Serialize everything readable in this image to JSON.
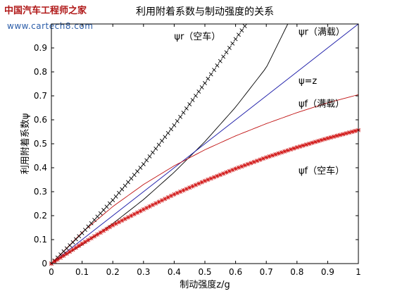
{
  "watermark": {
    "brand": "中国汽车工程师之家",
    "url": "www.cartech8.com"
  },
  "colors": {
    "psi_r_loaded": "#000000",
    "psi_equals_z": "#1a1aa8",
    "psi_f_loaded": "#c01010",
    "psi_r_empty_markers": "#000000",
    "psi_f_empty_markers": "#d01010"
  },
  "chart_data": {
    "type": "line",
    "title": "利用附着系数与制动强度的关系",
    "xlabel": "制动强度z/g",
    "ylabel": "利用附着系数ψ",
    "xlim": [
      0,
      1
    ],
    "ylim": [
      0,
      1
    ],
    "xticks": [
      "0",
      "0.1",
      "0.2",
      "0.3",
      "0.4",
      "0.5",
      "0.6",
      "0.7",
      "0.8",
      "0.9",
      "1"
    ],
    "yticks": [
      "0",
      "0.1",
      "0.2",
      "0.3",
      "0.4",
      "0.5",
      "0.6",
      "0.7",
      "0.8",
      "0.9"
    ],
    "grid": false,
    "series": [
      {
        "name": "ψr（满载）",
        "style": "line",
        "x": [
          0,
          0.1,
          0.2,
          0.3,
          0.4,
          0.5,
          0.6,
          0.7,
          0.77
        ],
        "y": [
          0,
          0.078,
          0.167,
          0.267,
          0.381,
          0.509,
          0.653,
          0.818,
          1.0
        ]
      },
      {
        "name": "ψr（空车）",
        "style": "markers",
        "marker": "x",
        "x": [
          0,
          0.1,
          0.2,
          0.3,
          0.4,
          0.5,
          0.6,
          0.635
        ],
        "y": [
          0,
          0.127,
          0.265,
          0.415,
          0.577,
          0.753,
          0.937,
          1.0
        ]
      },
      {
        "name": "ψ=z",
        "style": "line",
        "x": [
          0,
          0.5,
          1.0
        ],
        "y": [
          0,
          0.5,
          1.0
        ]
      },
      {
        "name": "ψf（满载）",
        "style": "line",
        "x": [
          0,
          0.1,
          0.2,
          0.3,
          0.4,
          0.5,
          0.6,
          0.7,
          0.8,
          0.9,
          1.0
        ],
        "y": [
          0,
          0.13,
          0.238,
          0.33,
          0.408,
          0.475,
          0.533,
          0.584,
          0.63,
          0.671,
          0.705
        ]
      },
      {
        "name": "ψf（空车）",
        "style": "markers",
        "marker": "*",
        "x": [
          0,
          0.1,
          0.2,
          0.3,
          0.4,
          0.5,
          0.6,
          0.7,
          0.8,
          0.9,
          1.0
        ],
        "y": [
          0,
          0.083,
          0.16,
          0.226,
          0.289,
          0.345,
          0.396,
          0.443,
          0.485,
          0.523,
          0.557
        ]
      }
    ],
    "annotations": [
      {
        "text": "ψr（空车）",
        "x": 0.4,
        "y": 0.935
      },
      {
        "text": "ψr（满载）",
        "x": 0.805,
        "y": 0.955
      },
      {
        "text": "ψ=z",
        "x": 0.805,
        "y": 0.75
      },
      {
        "text": "ψf（满载）",
        "x": 0.805,
        "y": 0.655
      },
      {
        "text": "ψf（空车）",
        "x": 0.805,
        "y": 0.375
      }
    ]
  }
}
